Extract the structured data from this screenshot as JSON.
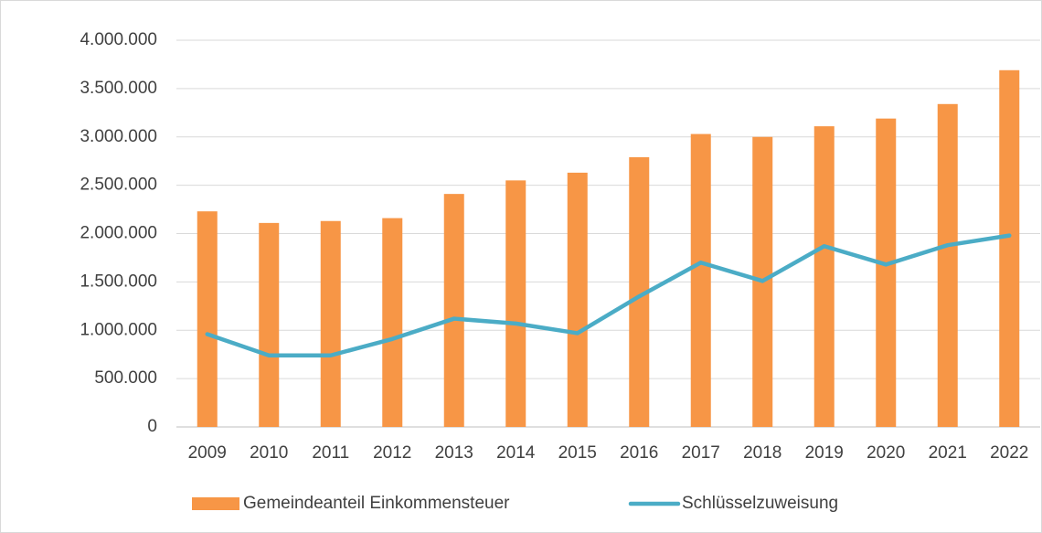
{
  "chart_data": {
    "type": "bar",
    "categories": [
      "2009",
      "2010",
      "2011",
      "2012",
      "2013",
      "2014",
      "2015",
      "2016",
      "2017",
      "2018",
      "2019",
      "2020",
      "2021",
      "2022"
    ],
    "series": [
      {
        "name": "Gemeindeanteil Einkommensteuer",
        "type": "bar",
        "color": "#f79646",
        "values": [
          2230000,
          2110000,
          2130000,
          2160000,
          2410000,
          2550000,
          2630000,
          2790000,
          3030000,
          3000000,
          3110000,
          3190000,
          3340000,
          3690000
        ]
      },
      {
        "name": "Schlüsselzuweisung",
        "type": "line",
        "color": "#4bacc6",
        "values": [
          960000,
          740000,
          740000,
          910000,
          1120000,
          1070000,
          970000,
          1350000,
          1700000,
          1510000,
          1870000,
          1680000,
          1880000,
          1980000
        ]
      }
    ],
    "ylim": [
      0,
      4000000
    ],
    "yticks": [
      0,
      {
        "value": 500000,
        "label": "500.000"
      },
      {
        "value": 1000000,
        "label": "1.000.000"
      },
      {
        "value": 1500000,
        "label": "1.500.000"
      },
      {
        "value": 2000000,
        "label": "2.000.000"
      },
      {
        "value": 2500000,
        "label": "2.500.000"
      },
      {
        "value": 3000000,
        "label": "3.000.000"
      },
      {
        "value": 3500000,
        "label": "3.500.000"
      },
      {
        "value": 4000000,
        "label": "4.000.000"
      }
    ],
    "grid": true,
    "legend": "bottom"
  }
}
